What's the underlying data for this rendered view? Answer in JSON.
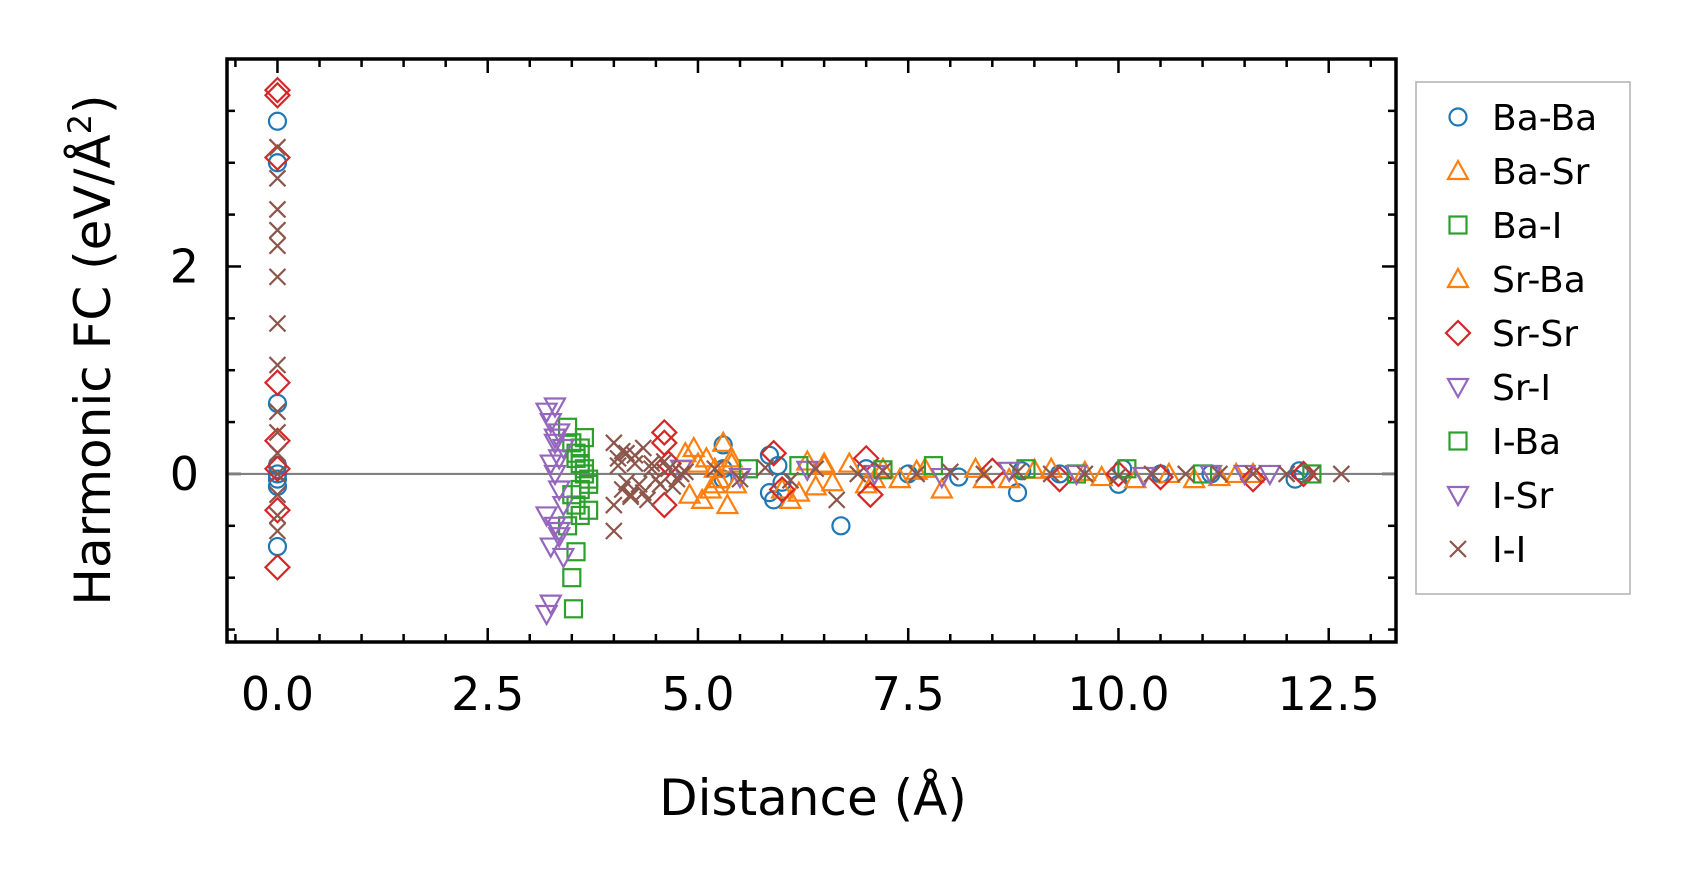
{
  "chart_data": {
    "type": "scatter",
    "title": "",
    "xlabel": "Distance (Å)",
    "ylabel": "Harmonic FC (eV/Å",
    "ylabel_sup": "2",
    "ylabel_end": ")",
    "xlim": [
      -0.6,
      13.3
    ],
    "ylim": [
      -1.62,
      4.0
    ],
    "xticks": [
      0.0,
      2.5,
      5.0,
      7.5,
      10.0,
      12.5
    ],
    "xtick_labels": [
      "0.0",
      "2.5",
      "5.0",
      "7.5",
      "10.0",
      "12.5"
    ],
    "yticks": [
      0,
      2
    ],
    "ytick_labels": [
      "0",
      "2"
    ],
    "zero_line": true,
    "legend_position": "outside-right",
    "series": [
      {
        "name": "Ba-Ba",
        "marker": "circle",
        "color": "#1f77b4",
        "x": [
          0.0,
          0.0,
          0.0,
          0.0,
          0.0,
          0.0,
          0.0,
          0.0,
          5.3,
          5.3,
          5.3,
          5.85,
          5.85,
          5.9,
          5.95,
          6.0,
          6.7,
          7.0,
          7.5,
          8.1,
          8.8,
          8.85,
          9.3,
          10.0,
          10.05,
          10.5,
          11.1,
          12.1,
          12.15,
          12.2
        ],
        "y": [
          3.4,
          3.0,
          0.68,
          0.08,
          -0.05,
          -0.12,
          -0.7,
          0.0,
          0.28,
          0.05,
          -0.05,
          0.18,
          -0.18,
          -0.25,
          0.08,
          -0.08,
          -0.5,
          0.05,
          0.0,
          -0.03,
          -0.18,
          0.03,
          0.0,
          -0.1,
          0.05,
          0.0,
          0.0,
          -0.05,
          0.03,
          0.0
        ]
      },
      {
        "name": "Ba-Sr",
        "marker": "triangle-up",
        "color": "#ff7f0e",
        "x": [
          4.95,
          5.05,
          5.1,
          5.15,
          5.2,
          5.25,
          5.3,
          5.35,
          5.4,
          5.45,
          4.9,
          4.85,
          6.1,
          6.2,
          6.3,
          6.4,
          6.5,
          6.6,
          6.8,
          7.0,
          7.2,
          7.4,
          7.6,
          7.9,
          8.3,
          8.7,
          9.2,
          9.6,
          10.2,
          10.9,
          11.4
        ],
        "y": [
          0.25,
          -0.25,
          0.15,
          -0.15,
          0.05,
          -0.05,
          0.3,
          -0.3,
          0.1,
          -0.1,
          -0.2,
          0.2,
          -0.25,
          -0.18,
          0.12,
          -0.12,
          0.08,
          -0.08,
          0.1,
          -0.1,
          0.05,
          -0.05,
          0.03,
          -0.15,
          0.05,
          -0.05,
          0.05,
          0.02,
          -0.05,
          -0.05,
          0.0
        ]
      },
      {
        "name": "Ba-I",
        "marker": "square",
        "color": "#2ca02c",
        "x": [
          3.45,
          3.5,
          3.55,
          3.6,
          3.65,
          3.7,
          3.5,
          3.55,
          3.6,
          3.45,
          3.65,
          3.7,
          3.55,
          3.6,
          3.5,
          3.52
        ],
        "y": [
          0.45,
          0.3,
          0.2,
          0.1,
          0.0,
          -0.1,
          -0.2,
          -0.3,
          -0.4,
          -0.5,
          0.35,
          -0.35,
          -0.75,
          0.25,
          -1.0,
          -1.3
        ]
      },
      {
        "name": "Sr-Ba",
        "marker": "triangle-up",
        "color": "#ff7f0e",
        "x": [
          5.0,
          5.2,
          5.4,
          6.0,
          6.5,
          7.1,
          7.7,
          8.4,
          9.0,
          9.8,
          10.6,
          11.2,
          11.6
        ],
        "y": [
          0.1,
          -0.1,
          0.15,
          -0.15,
          0.1,
          -0.05,
          0.05,
          -0.05,
          0.04,
          -0.03,
          0.0,
          -0.03,
          0.0
        ]
      },
      {
        "name": "Sr-Sr",
        "marker": "diamond",
        "color": "#d62728",
        "x": [
          0.0,
          0.0,
          0.0,
          0.0,
          0.0,
          0.0,
          0.0,
          0.0,
          4.6,
          4.6,
          4.6,
          4.65,
          5.9,
          6.0,
          7.0,
          7.05,
          8.5,
          9.3,
          10.0,
          10.5,
          11.6,
          12.2
        ],
        "y": [
          3.7,
          3.65,
          3.05,
          0.88,
          0.32,
          0.05,
          -0.35,
          -0.9,
          0.4,
          0.3,
          -0.3,
          0.1,
          0.2,
          -0.15,
          0.15,
          -0.2,
          0.03,
          -0.05,
          0.0,
          -0.03,
          -0.05,
          0.0
        ]
      },
      {
        "name": "Sr-I",
        "marker": "triangle-down",
        "color": "#9467bd",
        "x": [
          3.2,
          3.25,
          3.3,
          3.35,
          3.4,
          3.25,
          3.3,
          3.35,
          3.4,
          3.2,
          3.3,
          3.35,
          3.25,
          3.4,
          3.3,
          3.2,
          3.35,
          3.25
        ],
        "y": [
          0.6,
          0.5,
          0.65,
          0.4,
          0.25,
          0.1,
          0.0,
          -0.15,
          -0.3,
          -0.4,
          -0.5,
          -0.55,
          -0.7,
          -0.8,
          0.3,
          -1.35,
          0.15,
          -1.25
        ]
      },
      {
        "name": "I-Ba",
        "marker": "square",
        "color": "#2ca02c",
        "x": [
          3.55,
          3.6,
          3.65,
          3.7,
          5.6,
          6.2,
          7.2,
          7.8,
          8.9,
          9.5,
          10.1,
          11.0,
          12.3
        ],
        "y": [
          0.15,
          -0.15,
          0.05,
          -0.05,
          0.05,
          0.08,
          0.04,
          0.08,
          0.05,
          0.0,
          0.05,
          0.0,
          0.0
        ]
      },
      {
        "name": "I-Sr",
        "marker": "triangle-down",
        "color": "#9467bd",
        "x": [
          3.3,
          3.35,
          4.8,
          5.5,
          6.3,
          7.1,
          7.9,
          8.7,
          9.5,
          10.3,
          11.1,
          11.5,
          11.8
        ],
        "y": [
          0.35,
          -0.6,
          0.05,
          -0.03,
          0.04,
          0.0,
          -0.03,
          0.03,
          0.0,
          -0.02,
          0.0,
          0.0,
          0.0
        ]
      },
      {
        "name": "I-I",
        "marker": "x",
        "color": "#8c564b",
        "x": [
          0.0,
          0.0,
          0.0,
          0.0,
          0.0,
          0.0,
          0.0,
          0.0,
          0.0,
          0.0,
          0.0,
          0.0,
          0.0,
          0.0,
          0.0,
          4.0,
          4.0,
          4.05,
          4.1,
          4.15,
          4.2,
          4.25,
          4.3,
          4.35,
          4.4,
          4.45,
          4.5,
          4.6,
          4.7,
          4.8,
          4.05,
          4.15,
          4.25,
          4.35,
          4.45,
          4.55,
          4.65,
          4.75,
          4.85,
          4.0,
          4.1,
          4.2,
          5.2,
          5.5,
          5.8,
          6.1,
          6.4,
          6.65,
          6.9,
          7.2,
          7.6,
          8.0,
          8.4,
          8.8,
          9.2,
          9.6,
          10.0,
          10.4,
          10.8,
          11.2,
          11.6,
          12.0,
          12.3,
          12.65
        ],
        "y": [
          3.15,
          2.85,
          2.55,
          2.35,
          2.2,
          1.9,
          1.45,
          1.05,
          0.6,
          0.4,
          0.2,
          0.0,
          -0.2,
          -0.4,
          -0.55,
          0.3,
          -0.55,
          0.15,
          -0.15,
          0.2,
          -0.2,
          0.1,
          -0.1,
          0.25,
          -0.25,
          0.05,
          -0.05,
          0.12,
          -0.12,
          0.0,
          0.08,
          -0.08,
          0.18,
          -0.18,
          0.1,
          -0.1,
          0.05,
          -0.05,
          0.02,
          -0.3,
          0.22,
          -0.22,
          0.05,
          -0.05,
          0.06,
          -0.06,
          0.05,
          -0.25,
          0.0,
          0.03,
          0.0,
          0.02,
          0.0,
          0.02,
          0.0,
          0.0,
          -0.02,
          0.0,
          0.0,
          0.0,
          0.0,
          0.0,
          0.0,
          0.0
        ]
      }
    ]
  }
}
